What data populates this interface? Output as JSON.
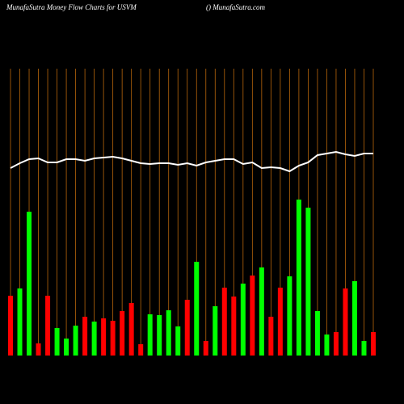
{
  "chart_data": {
    "type": "bar",
    "title": "MunafaSutra  Money Flow  Charts for USVM",
    "subtitle": "() MunafaSutra.com",
    "categories": [
      null,
      null,
      null,
      null,
      null,
      null,
      null,
      null,
      null,
      null,
      null,
      null,
      null,
      null,
      null,
      null,
      null,
      null,
      null,
      null,
      null,
      null,
      null,
      null,
      null,
      null,
      null,
      null,
      null,
      null,
      null,
      null,
      null,
      null,
      null,
      null,
      null,
      null,
      null,
      null
    ],
    "ylim": [
      0,
      355
    ],
    "grid_color": "#b8660b",
    "series": [
      {
        "type": "bar",
        "values": [
          74,
          83,
          178,
          15,
          74,
          34,
          21,
          37,
          48,
          42,
          46,
          43,
          55,
          65,
          14,
          51,
          50,
          56,
          36,
          69,
          116,
          18,
          61,
          84,
          73,
          89,
          99,
          109,
          48,
          84,
          98,
          193,
          183,
          55,
          26,
          29,
          83,
          92,
          18,
          29
        ],
        "colors": [
          "#ff0000",
          "#00ff00",
          "#00ff00",
          "#ff0000",
          "#ff0000",
          "#00ff00",
          "#00ff00",
          "#00ff00",
          "#ff0000",
          "#00ff00",
          "#ff0000",
          "#ff0000",
          "#ff0000",
          "#ff0000",
          "#ff0000",
          "#00ff00",
          "#00ff00",
          "#00ff00",
          "#00ff00",
          "#ff0000",
          "#00ff00",
          "#ff0000",
          "#00ff00",
          "#ff0000",
          "#ff0000",
          "#00ff00",
          "#ff0000",
          "#00ff00",
          "#ff0000",
          "#ff0000",
          "#00ff00",
          "#00ff00",
          "#00ff00",
          "#00ff00",
          "#00ff00",
          "#ff0000",
          "#ff0000",
          "#00ff00",
          "#00ff00",
          "#ff0000"
        ]
      },
      {
        "type": "line",
        "color": "#ffffff",
        "values": [
          232,
          238,
          243,
          244,
          239,
          239,
          243,
          243,
          241,
          244,
          245,
          246,
          244,
          241,
          238,
          237,
          238,
          238,
          236,
          238,
          235,
          239,
          241,
          243,
          243,
          237,
          239,
          232,
          233,
          232,
          228,
          235,
          239,
          248,
          250,
          252,
          249,
          247,
          250,
          250
        ]
      }
    ]
  }
}
